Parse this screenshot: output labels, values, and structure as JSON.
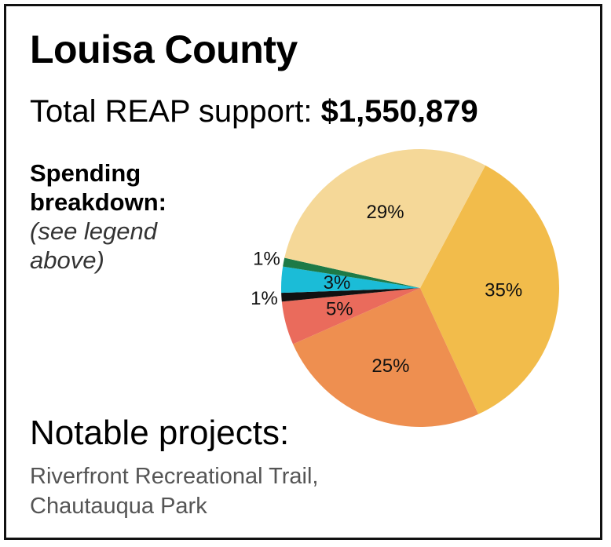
{
  "title": "Louisa County",
  "support": {
    "label": "Total REAP support:",
    "value": "$1,550,879"
  },
  "breakdown": {
    "heading_line1": "Spending",
    "heading_line2": "breakdown:",
    "note": "(see legend above)"
  },
  "chart_data": {
    "type": "pie",
    "title": "",
    "slices": [
      {
        "value": 35,
        "label": "35%",
        "color": "#F2BC4B"
      },
      {
        "value": 25,
        "label": "25%",
        "color": "#EE8F50"
      },
      {
        "value": 5,
        "label": "5%",
        "color": "#EA6B5C"
      },
      {
        "value": 1,
        "label": "1%",
        "color": "#111111"
      },
      {
        "value": 3,
        "label": "3%",
        "color": "#1BBCD7"
      },
      {
        "value": 1,
        "label": "1%",
        "color": "#1D7A47"
      },
      {
        "value": 29,
        "label": "29%",
        "color": "#F5D898"
      }
    ]
  },
  "notable": {
    "heading": "Notable projects:",
    "items": [
      "Riverfront Recreational Trail,",
      "Chautauqua Park"
    ]
  }
}
